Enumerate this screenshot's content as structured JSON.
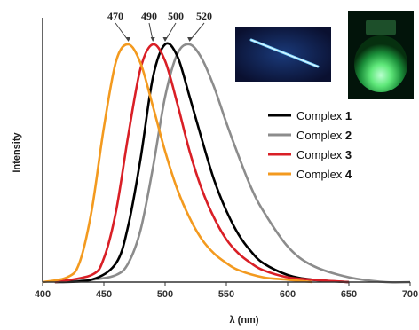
{
  "chart_data": {
    "type": "line",
    "xlabel": "λ (nm)",
    "ylabel": "Intensity",
    "xlim": [
      400,
      700
    ],
    "x_ticks": [
      "400",
      "450",
      "500",
      "550",
      "600",
      "650",
      "700"
    ],
    "grid": false,
    "legend_position": "right",
    "peak_labels": [
      {
        "text": "470",
        "x": 470
      },
      {
        "text": "490",
        "x": 490
      },
      {
        "text": "500",
        "x": 500
      },
      {
        "text": "520",
        "x": 520
      }
    ],
    "series": [
      {
        "name_prefix": "Complex",
        "name_number": "1",
        "color": "#000000",
        "peak": 500,
        "x_start": 410,
        "x_end": 650,
        "x": [
          410,
          440,
          460,
          470,
          480,
          490,
          500,
          510,
          520,
          530,
          540,
          550,
          560,
          570,
          580,
          600,
          620,
          650
        ],
        "y": [
          0.0,
          0.01,
          0.08,
          0.24,
          0.52,
          0.86,
          1.0,
          0.95,
          0.78,
          0.6,
          0.43,
          0.3,
          0.2,
          0.13,
          0.08,
          0.03,
          0.01,
          0.0
        ]
      },
      {
        "name_prefix": "Complex",
        "name_number": "2",
        "color": "#8c8c8c",
        "peak": 520,
        "x_start": 410,
        "x_end": 700,
        "x": [
          410,
          440,
          460,
          470,
          480,
          490,
          500,
          510,
          520,
          530,
          540,
          550,
          560,
          570,
          580,
          600,
          620,
          650,
          680,
          700
        ],
        "y": [
          0.0,
          0.01,
          0.03,
          0.08,
          0.22,
          0.48,
          0.78,
          0.96,
          1.0,
          0.94,
          0.82,
          0.67,
          0.53,
          0.4,
          0.3,
          0.15,
          0.07,
          0.02,
          0.0,
          0.0
        ]
      },
      {
        "name_prefix": "Complex",
        "name_number": "3",
        "color": "#d91f26",
        "peak": 490,
        "x_start": 410,
        "x_end": 650,
        "x": [
          410,
          440,
          450,
          460,
          470,
          480,
          490,
          500,
          510,
          520,
          530,
          540,
          550,
          560,
          570,
          580,
          600,
          620,
          650
        ],
        "y": [
          0.0,
          0.03,
          0.1,
          0.3,
          0.62,
          0.9,
          1.0,
          0.93,
          0.75,
          0.55,
          0.39,
          0.27,
          0.18,
          0.12,
          0.08,
          0.05,
          0.02,
          0.01,
          0.0
        ]
      },
      {
        "name_prefix": "Complex",
        "name_number": "4",
        "color": "#f39a1f",
        "peak": 470,
        "x_start": 400,
        "x_end": 620,
        "x": [
          400,
          420,
          430,
          440,
          450,
          460,
          470,
          480,
          490,
          500,
          510,
          520,
          530,
          540,
          550,
          560,
          580,
          600,
          620
        ],
        "y": [
          0.0,
          0.02,
          0.08,
          0.3,
          0.65,
          0.93,
          1.0,
          0.92,
          0.74,
          0.55,
          0.39,
          0.27,
          0.18,
          0.12,
          0.08,
          0.05,
          0.02,
          0.01,
          0.0
        ]
      }
    ]
  },
  "photos": [
    {
      "name": "blue-fiber-photo",
      "description": "glowing blue fiber"
    },
    {
      "name": "green-vial-photo",
      "description": "glowing green vial"
    }
  ]
}
